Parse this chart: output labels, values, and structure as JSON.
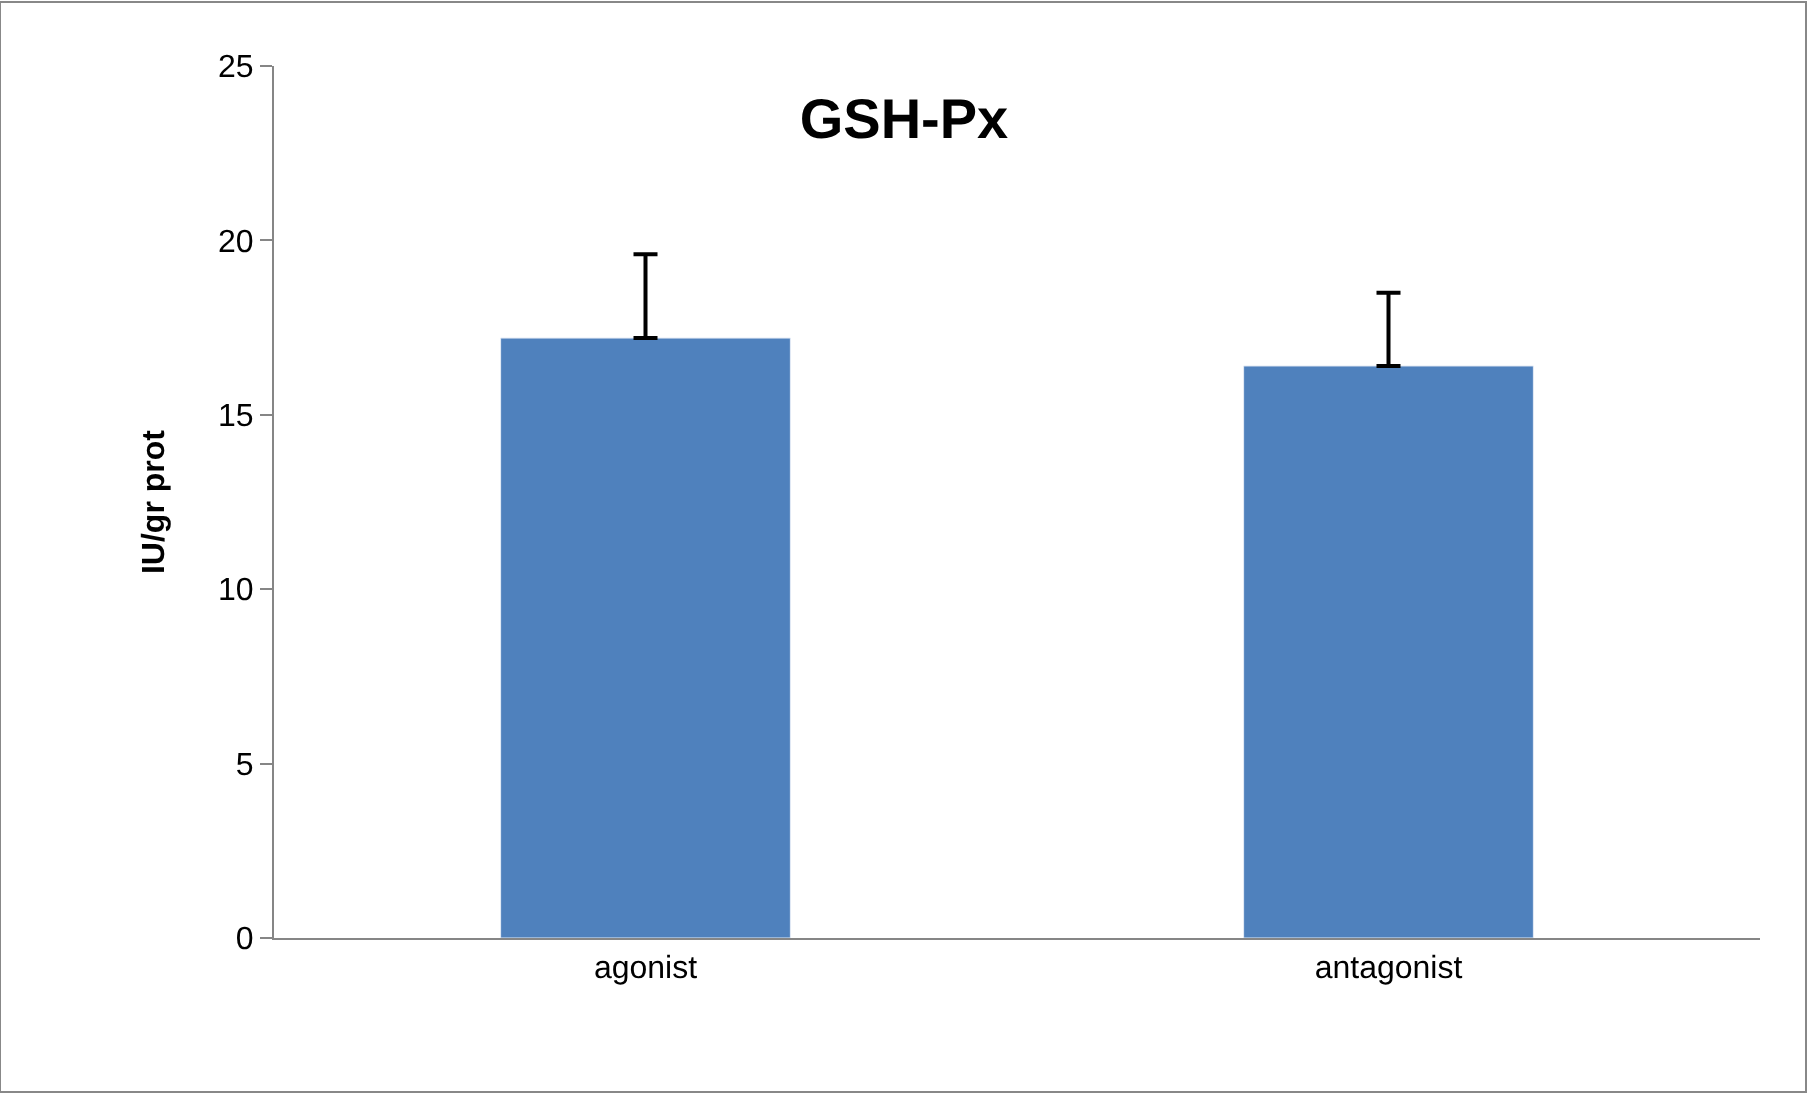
{
  "chart_data": {
    "type": "bar",
    "title": "GSH-Px",
    "ylabel": "IU/gr prot",
    "categories": [
      "agonist",
      "antagonist"
    ],
    "values": [
      17.2,
      16.4
    ],
    "errors": [
      [
        17.2,
        19.6
      ],
      [
        16.4,
        18.5
      ]
    ],
    "color": "#4f81bd",
    "ylim": [
      0,
      25
    ],
    "yticks": [
      0,
      5,
      10,
      15,
      20,
      25
    ]
  }
}
